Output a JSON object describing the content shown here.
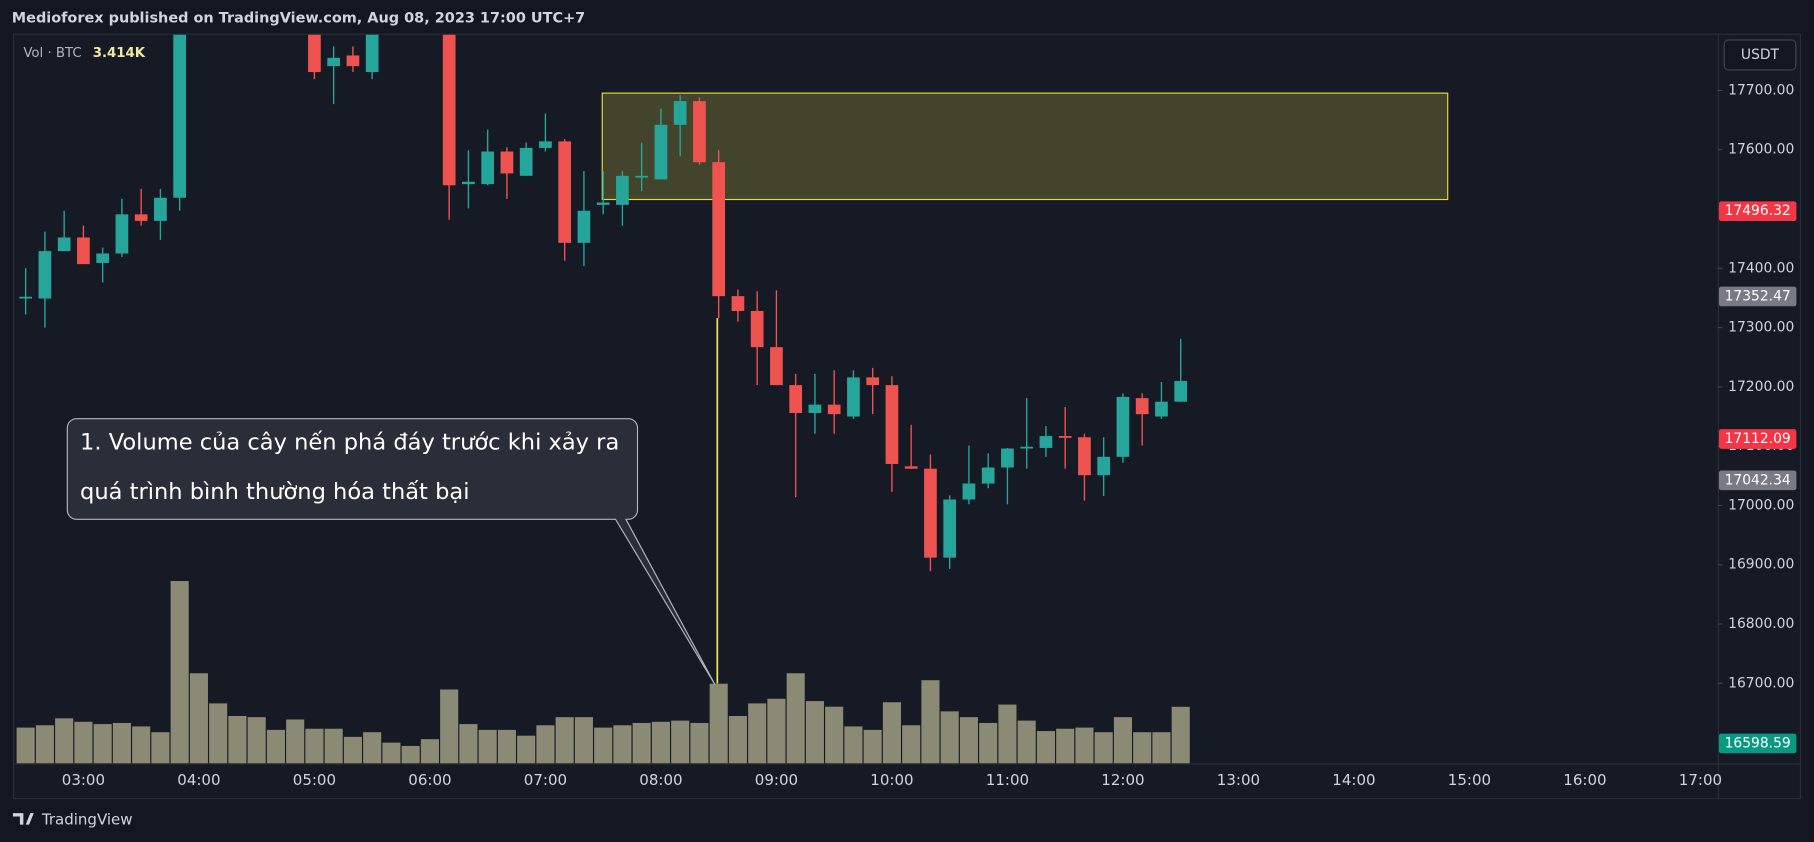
{
  "header": "Medioforex published on TradingView.com, Aug 08, 2023 17:00 UTC+7",
  "footer": "TradingView",
  "chart_data": {
    "type": "candlestick",
    "x": [
      "02:30",
      "02:40",
      "02:50",
      "03:00",
      "03:10",
      "03:20",
      "03:30",
      "03:40",
      "03:50",
      "04:00",
      "04:10",
      "04:20",
      "04:30",
      "04:40",
      "04:50",
      "05:00",
      "05:10",
      "05:20",
      "05:30",
      "05:40",
      "05:50",
      "06:00",
      "06:10",
      "06:20",
      "06:30",
      "06:40",
      "06:50",
      "07:00",
      "07:10",
      "07:20",
      "07:30",
      "07:40",
      "07:50",
      "08:00",
      "08:10",
      "08:20",
      "08:30",
      "08:40",
      "08:50",
      "09:00",
      "09:10",
      "09:20",
      "09:30",
      "09:40",
      "09:50",
      "10:00",
      "10:10",
      "10:20",
      "10:30",
      "10:40",
      "10:50",
      "11:00",
      "11:10",
      "11:20",
      "11:30",
      "11:40",
      "11:50",
      "12:00",
      "12:10",
      "12:20",
      "12:30"
    ],
    "open": [
      17350,
      17349,
      17429,
      17452,
      17409,
      17425,
      17491,
      17480,
      17519,
      null,
      null,
      null,
      null,
      null,
      null,
      17830,
      17741,
      17759,
      17731,
      null,
      null,
      null,
      17820,
      17542,
      17542,
      17597,
      17556,
      17603,
      17614,
      17443,
      17507,
      17507,
      17554,
      17550,
      17642,
      17682,
      17579,
      17353,
      17328,
      17267,
      17203,
      17156,
      17170,
      17150,
      17216,
      17203,
      17066,
      17062,
      16912,
      17010,
      17037,
      17064,
      17096,
      17097,
      17117,
      17115,
      17051,
      17082,
      17181,
      17150,
      17175
    ],
    "high": [
      17400,
      17462,
      17497,
      17472,
      17435,
      17517,
      17534,
      17534,
      17830,
      null,
      null,
      null,
      null,
      null,
      null,
      17860,
      17774,
      17774,
      17830,
      null,
      null,
      null,
      17840,
      17599,
      17634,
      17604,
      17612,
      17661,
      17618,
      17564,
      17564,
      17564,
      17612,
      17669,
      17692,
      17688,
      17599,
      17364,
      17361,
      17363,
      17222,
      17222,
      17228,
      17228,
      17232,
      17218,
      17136,
      17086,
      17017,
      17101,
      17088,
      17097,
      17181,
      17134,
      17166,
      17121,
      17115,
      17189,
      17189,
      17208,
      17281
    ],
    "low": [
      17322,
      17300,
      17429,
      17407,
      17376,
      17419,
      17472,
      17448,
      17497,
      null,
      null,
      null,
      null,
      null,
      null,
      17719,
      17677,
      17731,
      17719,
      null,
      null,
      null,
      17482,
      17501,
      17540,
      17517,
      17556,
      17597,
      17413,
      17404,
      17491,
      17472,
      17530,
      17550,
      17589,
      17575,
      17316,
      17310,
      17203,
      17203,
      17014,
      17121,
      17121,
      17146,
      17154,
      17023,
      17062,
      16889,
      16893,
      17002,
      17029,
      17002,
      17062,
      17082,
      17062,
      17008,
      17016,
      17072,
      17101,
      17146,
      17175
    ],
    "close": [
      17352,
      17429,
      17452,
      17407,
      17425,
      17491,
      17480,
      17519,
      17800,
      null,
      null,
      null,
      null,
      null,
      null,
      17731,
      17755,
      17741,
      17810,
      null,
      null,
      null,
      17540,
      17546,
      17597,
      17560,
      17603,
      17614,
      17443,
      17497,
      17511,
      17556,
      17556,
      17642,
      17682,
      17579,
      17353,
      17328,
      17267,
      17203,
      17156,
      17170,
      17154,
      17216,
      17203,
      17070,
      17062,
      16912,
      17010,
      17037,
      17064,
      17096,
      17099,
      17117,
      17115,
      17051,
      17082,
      17183,
      17154,
      17175,
      17210
    ],
    "up_color": "#26a69a",
    "down_color": "#ef5350",
    "xlim": [
      "02:24",
      "17:09"
    ],
    "xticks": [
      "03:00",
      "04:00",
      "05:00",
      "06:00",
      "07:00",
      "08:00",
      "09:00",
      "10:00",
      "11:00",
      "12:00",
      "13:00",
      "14:00",
      "15:00",
      "16:00",
      "17:00"
    ],
    "ylim": [
      16565,
      17794
    ],
    "yticks": [
      {
        "value": 16700,
        "label": "16700.00"
      },
      {
        "value": 16800,
        "label": "16800.00"
      },
      {
        "value": 16900,
        "label": "16900.00"
      },
      {
        "value": 17000,
        "label": "17000.00"
      },
      {
        "value": 17100,
        "label": "17100.00"
      },
      {
        "value": 17200,
        "label": "17200.00"
      },
      {
        "value": 17300,
        "label": "17300.00"
      },
      {
        "value": 17400,
        "label": "17400.00"
      },
      {
        "value": 17500,
        "label": "17500.00"
      },
      {
        "value": 17600,
        "label": "17600.00"
      },
      {
        "value": 17700,
        "label": "17700.00"
      }
    ],
    "currency": "USDT",
    "volume": {
      "name": "Vol · BTC",
      "color": "#8b8a74",
      "last_label": "3.414K",
      "ylim": [
        0,
        44000
      ],
      "values": [
        2160,
        2300,
        2720,
        2510,
        2370,
        2440,
        2230,
        1880,
        11010,
        5440,
        3620,
        2860,
        2790,
        2020,
        2650,
        2090,
        2090,
        1600,
        1880,
        1250,
        1050,
        1460,
        4460,
        2370,
        2020,
        2020,
        1670,
        2300,
        2790,
        2790,
        2160,
        2300,
        2440,
        2510,
        2580,
        2440,
        4810,
        2860,
        3620,
        3900,
        5440,
        3760,
        3420,
        2230,
        2020,
        3690,
        2300,
        5020,
        3140,
        2790,
        2440,
        3550,
        2580,
        1950,
        2090,
        2160,
        1880,
        2790,
        1880,
        1880,
        3414
      ]
    },
    "price_lines": [
      {
        "value": 17496.32,
        "color": "#f23645"
      },
      {
        "value": 17352.47,
        "color": "#787b86"
      },
      {
        "value": 17112.09,
        "color": "#f23645"
      },
      {
        "value": 17042.34,
        "color": "#787b86"
      },
      {
        "value": 16598.59,
        "color": "#089981"
      }
    ],
    "annotation": [
      "1. Volume của cây nến phá đáy trước khi xảy ra",
      "quá trình bình thường hóa thất bại"
    ]
  }
}
